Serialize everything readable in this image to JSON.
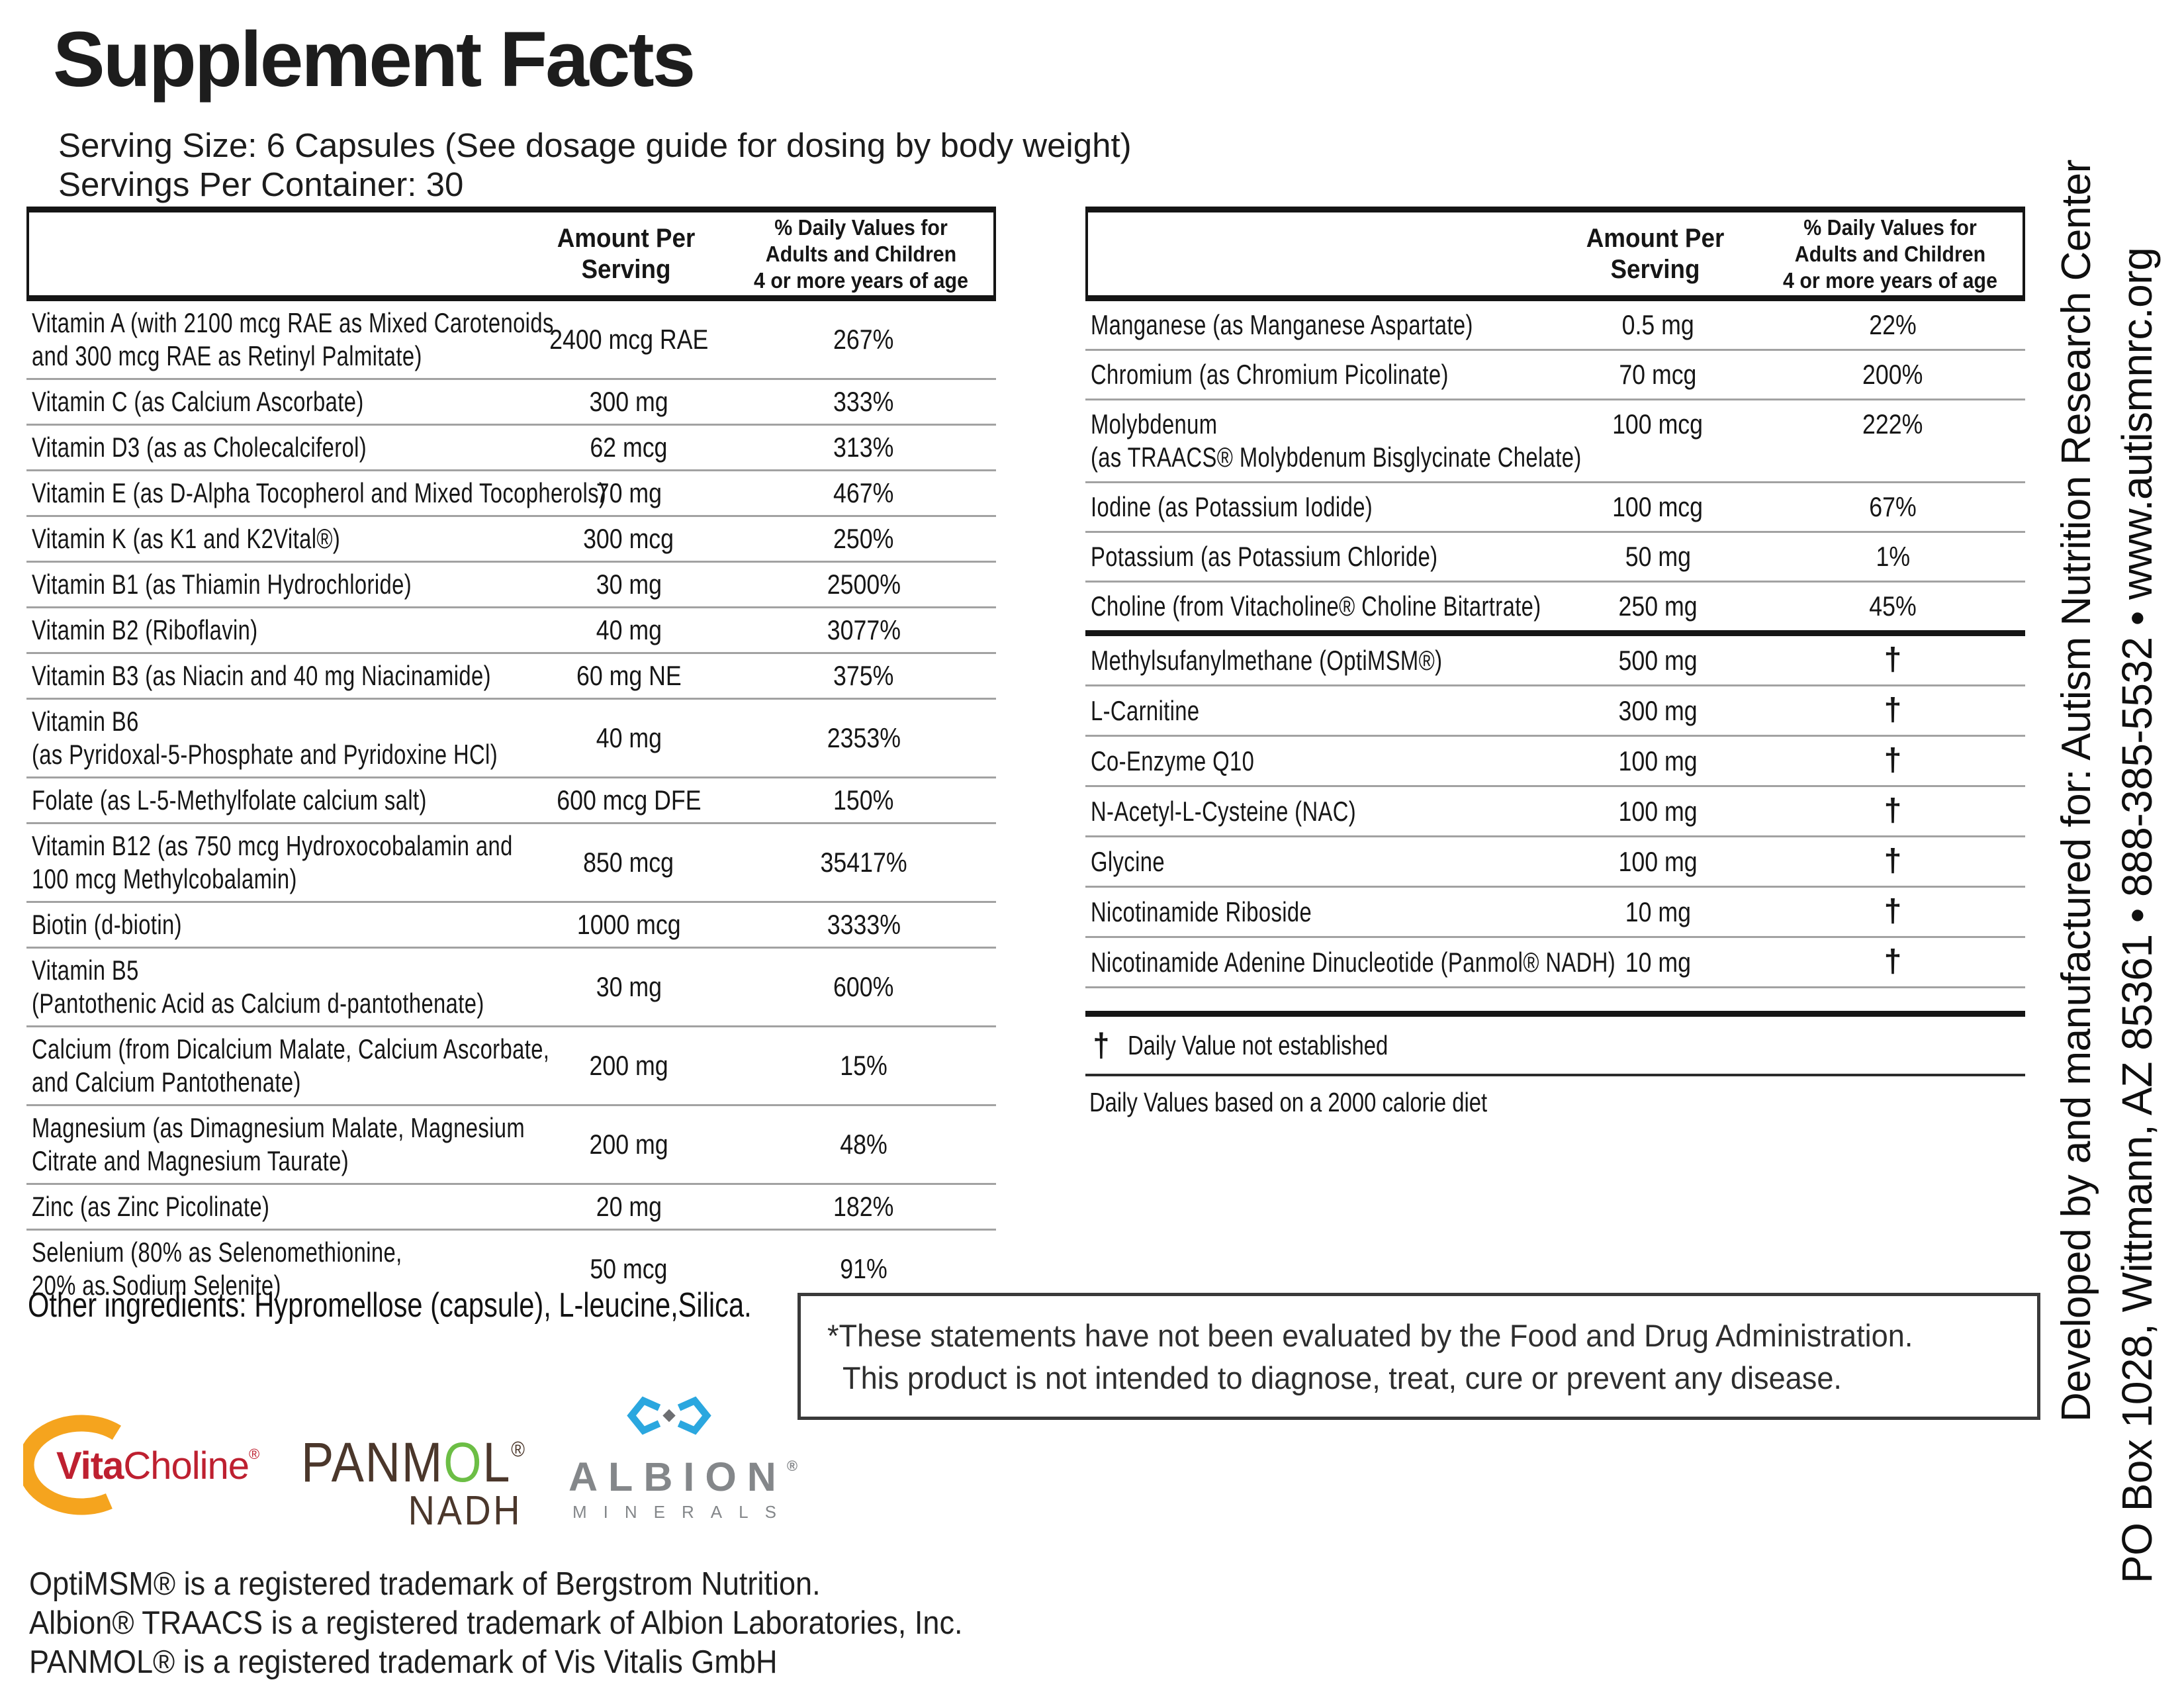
{
  "title": "Supplement Facts",
  "serving_size": "Serving Size: 6 Capsules (See dosage guide for dosing by body weight)",
  "servings_per_container": "Servings Per Container: 30",
  "header": {
    "amount_lines": [
      "Amount Per",
      "Serving"
    ],
    "dv_lines": [
      "% Daily Values for",
      "Adults and Children",
      "4 or more years of age"
    ]
  },
  "left_table": {
    "rows": [
      {
        "label_lines": [
          "Vitamin A (with 2100 mcg RAE as Mixed Carotenoids",
          "and 300 mcg RAE as Retinyl Palmitate)"
        ],
        "amount": "2400 mcg RAE",
        "dv": "267%"
      },
      {
        "label_lines": [
          "Vitamin C (as Calcium Ascorbate)"
        ],
        "amount": "300 mg",
        "dv": "333%"
      },
      {
        "label_lines": [
          "Vitamin D3 (as as Cholecalciferol)"
        ],
        "amount": "62 mcg",
        "dv": "313%"
      },
      {
        "label_lines": [
          "Vitamin E (as D-Alpha Tocopherol and Mixed Tocopherols)"
        ],
        "amount": "70 mg",
        "dv": "467%"
      },
      {
        "label_lines": [
          "Vitamin K (as K1 and K2Vital®)"
        ],
        "amount": "300 mcg",
        "dv": "250%"
      },
      {
        "label_lines": [
          "Vitamin B1 (as Thiamin Hydrochloride)"
        ],
        "amount": "30 mg",
        "dv": "2500%"
      },
      {
        "label_lines": [
          "Vitamin B2 (Riboflavin)"
        ],
        "amount": "40 mg",
        "dv": "3077%"
      },
      {
        "label_lines": [
          "Vitamin B3 (as Niacin and 40 mg Niacinamide)"
        ],
        "amount": "60 mg NE",
        "dv": "375%"
      },
      {
        "label_lines": [
          "Vitamin B6",
          "(as Pyridoxal-5-Phosphate and Pyridoxine HCl)"
        ],
        "amount": "40 mg",
        "dv": "2353%"
      },
      {
        "label_lines": [
          "Folate (as L-5-Methylfolate calcium salt)"
        ],
        "amount": "600 mcg DFE",
        "dv": "150%"
      },
      {
        "label_lines": [
          "Vitamin B12 (as 750 mcg Hydroxocobalamin and",
          "100 mcg Methylcobalamin)"
        ],
        "amount": "850 mcg",
        "dv": "35417%"
      },
      {
        "label_lines": [
          "Biotin (d-biotin)"
        ],
        "amount": "1000 mcg",
        "dv": "3333%"
      },
      {
        "label_lines": [
          "Vitamin B5",
          "(Pantothenic Acid as Calcium d-pantothenate)"
        ],
        "amount": "30 mg",
        "dv": "600%"
      },
      {
        "label_lines": [
          "Calcium (from Dicalcium Malate, Calcium Ascorbate,",
          "and Calcium Pantothenate)"
        ],
        "amount": "200 mg",
        "dv": "15%"
      },
      {
        "label_lines": [
          "Magnesium (as Dimagnesium Malate, Magnesium",
          "Citrate and Magnesium Taurate)"
        ],
        "amount": "200 mg",
        "dv": "48%"
      },
      {
        "label_lines": [
          "Zinc (as Zinc Picolinate)"
        ],
        "amount": "20 mg",
        "dv": "182%"
      },
      {
        "label_lines": [
          "Selenium (80% as Selenomethionine,",
          "20% as Sodium Selenite)"
        ],
        "amount": "50 mcg",
        "dv": "91%"
      }
    ]
  },
  "right_table": {
    "rows": [
      {
        "label_lines": [
          "Manganese (as Manganese Aspartate)"
        ],
        "amount": "0.5 mg",
        "dv": "22%"
      },
      {
        "label_lines": [
          "Chromium (as Chromium Picolinate)"
        ],
        "amount": "70 mcg",
        "dv": "200%"
      },
      {
        "label_lines": [
          "Molybdenum",
          "(as TRAACS® Molybdenum Bisglycinate Chelate)"
        ],
        "amount": "100 mcg",
        "dv": "222%",
        "valign": "top"
      },
      {
        "label_lines": [
          "Iodine (as Potassium Iodide)"
        ],
        "amount": "100 mcg",
        "dv": "67%"
      },
      {
        "label_lines": [
          "Potassium (as Potassium Chloride)"
        ],
        "amount": "50 mg",
        "dv": "1%"
      },
      {
        "label_lines": [
          "Choline (from Vitacholine® Choline Bitartrate)"
        ],
        "amount": "250 mg",
        "dv": "45%",
        "thick_divider_after": true
      },
      {
        "label_lines": [
          "Methylsufanylmethane (OptiMSM®)"
        ],
        "amount": "500 mg",
        "dv": "†"
      },
      {
        "label_lines": [
          "L-Carnitine"
        ],
        "amount": "300 mg",
        "dv": "†"
      },
      {
        "label_lines": [
          "Co-Enzyme Q10"
        ],
        "amount": "100 mg",
        "dv": "†"
      },
      {
        "label_lines": [
          "N-Acetyl-L-Cysteine (NAC)"
        ],
        "amount": "100 mg",
        "dv": "†"
      },
      {
        "label_lines": [
          "Glycine"
        ],
        "amount": "100 mg",
        "dv": "†"
      },
      {
        "label_lines": [
          "Nicotinamide Riboside"
        ],
        "amount": "10 mg",
        "dv": "†"
      },
      {
        "label_lines": [
          "Nicotinamide Adenine Dinucleotide (Panmol® NADH)"
        ],
        "amount": "10 mg",
        "dv": "†"
      }
    ],
    "dagger_symbol": "†",
    "dagger_note": "Daily Value not established",
    "calorie_note": "Daily Values based on a 2000 calorie diet"
  },
  "other_ingredients": "Other ingredients: Hypromellose (capsule), L-leucine,Silica.",
  "disclaimer_lines": [
    "*These statements have not been evaluated by the Food and Drug Administration.",
    "This product is not intended to diagnose, treat, cure or prevent any disease."
  ],
  "logos": {
    "vitacholine": {
      "part_bold": "Vita",
      "part_light": "Choline",
      "reg": "®"
    },
    "panmol": {
      "p1": "PANM",
      "o": "O",
      "p2": "L",
      "reg": "®",
      "line2": "NADH"
    },
    "albion": {
      "name": "ALBION",
      "reg": "®",
      "sub": "MINERALS"
    }
  },
  "trademarks": [
    "OptiMSM® is a registered trademark of Bergstrom Nutrition.",
    "Albion® TRAACS is a registered trademark of Albion Laboratories, Inc.",
    "PANMOL® is a registered trademark of Vis Vitalis GmbH"
  ],
  "sidebar": {
    "line1": "Developed by and manufactured for: Autism Nutrition Research Center",
    "line2": "PO Box 1028, Wittmann, AZ 85361  •  888-385-5532  •  www.autismnrc.org"
  },
  "colors": {
    "vitacholine_yellow": "#F5A41E",
    "vitacholine_red": "#BE2030",
    "panmol_brown": "#4B372B",
    "panmol_green": "#6CBE45",
    "albion_blue": "#2BA7DF",
    "albion_gray": "#84878A",
    "thin_rule": "#a2a2a2",
    "thick_rule": "#151515"
  }
}
